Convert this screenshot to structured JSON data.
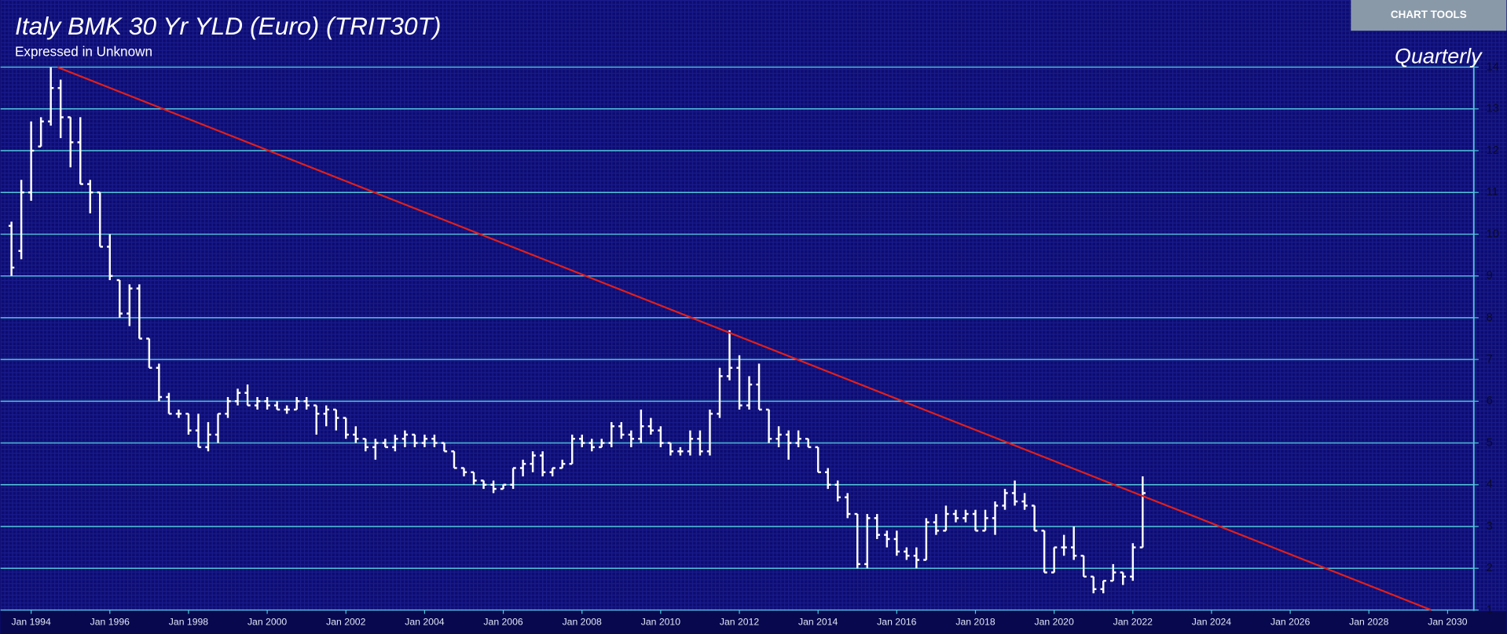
{
  "toolbar": {
    "button": "CHART TOOLS"
  },
  "chart_data": {
    "type": "ohlc",
    "title": "Italy BMK 30 Yr YLD (Euro) (TRIT30T)",
    "subtitle": "Expressed in Unknown",
    "period": "Quarterly",
    "bar_color": "#ffffff",
    "grid": true,
    "grid_color": "#52c6dc",
    "x": [
      "1993-07",
      "1993-10",
      "1994-01",
      "1994-04",
      "1994-07",
      "1994-10",
      "1995-01",
      "1995-04",
      "1995-07",
      "1995-10",
      "1996-01",
      "1996-04",
      "1996-07",
      "1996-10",
      "1997-01",
      "1997-04",
      "1997-07",
      "1997-10",
      "1998-01",
      "1998-04",
      "1998-07",
      "1998-10",
      "1999-01",
      "1999-04",
      "1999-07",
      "1999-10",
      "2000-01",
      "2000-04",
      "2000-07",
      "2000-10",
      "2001-01",
      "2001-04",
      "2001-07",
      "2001-10",
      "2002-01",
      "2002-04",
      "2002-07",
      "2002-10",
      "2003-01",
      "2003-04",
      "2003-07",
      "2003-10",
      "2004-01",
      "2004-04",
      "2004-07",
      "2004-10",
      "2005-01",
      "2005-04",
      "2005-07",
      "2005-10",
      "2006-01",
      "2006-04",
      "2006-07",
      "2006-10",
      "2007-01",
      "2007-04",
      "2007-07",
      "2007-10",
      "2008-01",
      "2008-04",
      "2008-07",
      "2008-10",
      "2009-01",
      "2009-04",
      "2009-07",
      "2009-10",
      "2010-01",
      "2010-04",
      "2010-07",
      "2010-10",
      "2011-01",
      "2011-04",
      "2011-07",
      "2011-10",
      "2012-01",
      "2012-04",
      "2012-07",
      "2012-10",
      "2013-01",
      "2013-04",
      "2013-07",
      "2013-10",
      "2014-01",
      "2014-04",
      "2014-07",
      "2014-10",
      "2015-01",
      "2015-04",
      "2015-07",
      "2015-10",
      "2016-01",
      "2016-04",
      "2016-07",
      "2016-10",
      "2017-01",
      "2017-04",
      "2017-07",
      "2017-10",
      "2018-01",
      "2018-04",
      "2018-07",
      "2018-10",
      "2019-01",
      "2019-04",
      "2019-07",
      "2019-10",
      "2020-01",
      "2020-04",
      "2020-07",
      "2020-10",
      "2021-01",
      "2021-04",
      "2021-07",
      "2021-10",
      "2022-01",
      "2022-04"
    ],
    "open": [
      10.2,
      9.6,
      11.0,
      12.1,
      12.7,
      13.5,
      12.8,
      12.2,
      11.2,
      11.0,
      9.7,
      8.9,
      8.1,
      8.7,
      7.5,
      6.8,
      6.1,
      5.7,
      5.7,
      5.3,
      4.9,
      5.2,
      5.7,
      6.0,
      6.2,
      5.9,
      6.0,
      5.9,
      5.8,
      5.8,
      6.0,
      5.9,
      5.7,
      5.8,
      5.6,
      5.2,
      5.1,
      4.9,
      5.0,
      4.9,
      5.1,
      5.2,
      5.0,
      5.1,
      5.0,
      4.8,
      4.4,
      4.3,
      4.1,
      4.0,
      3.9,
      4.0,
      4.4,
      4.5,
      4.7,
      4.3,
      4.4,
      4.5,
      5.1,
      5.0,
      4.9,
      5.0,
      5.4,
      5.2,
      5.1,
      5.4,
      5.3,
      5.0,
      4.8,
      4.8,
      5.1,
      4.8,
      5.7,
      6.6,
      6.8,
      5.9,
      6.4,
      5.8,
      5.1,
      5.2,
      5.0,
      5.1,
      4.9,
      4.3,
      4.0,
      3.7,
      3.3,
      2.1,
      3.2,
      2.8,
      2.7,
      2.4,
      2.3,
      2.2,
      3.1,
      2.9,
      3.3,
      3.2,
      3.3,
      2.9,
      3.2,
      3.5,
      3.8,
      3.6,
      3.5,
      2.9,
      1.9,
      2.5,
      2.5,
      2.3,
      1.8,
      1.5,
      1.7,
      1.9,
      1.8,
      2.5
    ],
    "high": [
      10.3,
      11.3,
      12.7,
      12.8,
      14.0,
      13.7,
      12.8,
      12.8,
      11.3,
      11.0,
      10.0,
      8.9,
      8.8,
      8.8,
      7.5,
      6.9,
      6.2,
      5.8,
      5.7,
      5.7,
      5.5,
      5.7,
      6.1,
      6.3,
      6.4,
      6.1,
      6.1,
      6.0,
      5.9,
      6.1,
      6.1,
      5.9,
      5.9,
      5.8,
      5.6,
      5.4,
      5.1,
      5.1,
      5.1,
      5.2,
      5.3,
      5.2,
      5.2,
      5.2,
      5.0,
      4.8,
      4.4,
      4.3,
      4.1,
      4.1,
      4.0,
      4.4,
      4.6,
      4.8,
      4.8,
      4.4,
      4.6,
      5.2,
      5.2,
      5.1,
      5.1,
      5.5,
      5.5,
      5.3,
      5.8,
      5.6,
      5.4,
      5.0,
      4.9,
      5.3,
      5.3,
      5.8,
      6.8,
      7.7,
      7.1,
      6.6,
      6.9,
      5.8,
      5.4,
      5.3,
      5.3,
      5.1,
      4.9,
      4.4,
      4.1,
      3.8,
      3.3,
      3.3,
      3.3,
      2.9,
      2.9,
      2.5,
      2.5,
      3.2,
      3.3,
      3.5,
      3.4,
      3.4,
      3.4,
      3.4,
      3.6,
      3.9,
      4.1,
      3.8,
      3.5,
      2.9,
      2.5,
      2.8,
      3.0,
      2.3,
      1.8,
      1.7,
      2.1,
      1.9,
      2.6,
      4.2
    ],
    "low": [
      9.0,
      9.4,
      10.8,
      12.1,
      12.6,
      12.3,
      11.6,
      11.2,
      10.5,
      9.7,
      8.9,
      8.0,
      7.8,
      7.5,
      6.8,
      6.0,
      5.7,
      5.6,
      5.2,
      4.9,
      4.8,
      5.0,
      5.6,
      5.9,
      5.9,
      5.8,
      5.8,
      5.8,
      5.7,
      5.8,
      5.8,
      5.2,
      5.4,
      5.3,
      5.1,
      5.0,
      4.8,
      4.6,
      4.9,
      4.8,
      4.9,
      4.9,
      4.9,
      4.9,
      4.8,
      4.4,
      4.2,
      4.0,
      3.9,
      3.8,
      3.9,
      3.9,
      4.2,
      4.3,
      4.2,
      4.2,
      4.4,
      4.5,
      4.9,
      4.8,
      4.9,
      4.9,
      5.1,
      4.9,
      5.0,
      5.2,
      4.9,
      4.7,
      4.7,
      4.7,
      4.7,
      4.7,
      5.6,
      6.5,
      5.8,
      5.8,
      5.8,
      5.0,
      4.9,
      4.6,
      4.9,
      4.9,
      4.3,
      3.9,
      3.6,
      3.2,
      2.0,
      2.0,
      2.7,
      2.5,
      2.3,
      2.2,
      2.0,
      2.2,
      2.8,
      2.9,
      3.1,
      3.1,
      2.9,
      2.9,
      2.8,
      3.4,
      3.5,
      3.4,
      2.9,
      1.9,
      1.9,
      2.3,
      2.2,
      1.8,
      1.4,
      1.4,
      1.7,
      1.6,
      1.7,
      2.5
    ],
    "close": [
      9.2,
      11.0,
      12.0,
      12.7,
      13.5,
      12.8,
      12.2,
      11.2,
      11.0,
      9.7,
      9.0,
      8.1,
      8.7,
      7.5,
      6.8,
      6.1,
      5.7,
      5.7,
      5.3,
      4.9,
      5.2,
      5.7,
      6.0,
      6.2,
      5.9,
      6.0,
      5.9,
      5.8,
      5.8,
      6.0,
      5.9,
      5.7,
      5.8,
      5.6,
      5.2,
      5.1,
      4.9,
      5.0,
      4.9,
      5.1,
      5.2,
      5.0,
      5.1,
      5.0,
      4.8,
      4.4,
      4.3,
      4.1,
      4.0,
      3.9,
      4.0,
      4.4,
      4.5,
      4.7,
      4.3,
      4.4,
      4.5,
      5.1,
      5.0,
      4.9,
      5.0,
      5.4,
      5.2,
      5.1,
      5.4,
      5.3,
      5.0,
      4.8,
      4.8,
      5.1,
      4.8,
      5.7,
      6.6,
      6.8,
      5.9,
      6.4,
      5.8,
      5.1,
      5.2,
      5.0,
      5.1,
      4.9,
      4.3,
      4.0,
      3.7,
      3.3,
      2.1,
      3.2,
      2.8,
      2.7,
      2.4,
      2.3,
      2.2,
      3.1,
      2.9,
      3.3,
      3.2,
      3.3,
      2.9,
      3.2,
      3.5,
      3.8,
      3.6,
      3.5,
      2.9,
      1.9,
      2.5,
      2.5,
      2.3,
      1.8,
      1.5,
      1.7,
      1.9,
      1.8,
      2.5,
      3.8
    ],
    "trendline": {
      "x": [
        "1994-09",
        "2029-08"
      ],
      "y": [
        14,
        1
      ],
      "color": "#e0201c"
    },
    "xlim": [
      "1993-06",
      "2030-09"
    ],
    "xticks": [
      {
        "value": "1994-01",
        "label": "Jan 1994"
      },
      {
        "value": "1996-01",
        "label": "Jan 1996"
      },
      {
        "value": "1998-01",
        "label": "Jan 1998"
      },
      {
        "value": "2000-01",
        "label": "Jan 2000"
      },
      {
        "value": "2002-01",
        "label": "Jan 2002"
      },
      {
        "value": "2004-01",
        "label": "Jan 2004"
      },
      {
        "value": "2006-01",
        "label": "Jan 2006"
      },
      {
        "value": "2008-01",
        "label": "Jan 2008"
      },
      {
        "value": "2010-01",
        "label": "Jan 2010"
      },
      {
        "value": "2012-01",
        "label": "Jan 2012"
      },
      {
        "value": "2014-01",
        "label": "Jan 2014"
      },
      {
        "value": "2016-01",
        "label": "Jan 2016"
      },
      {
        "value": "2018-01",
        "label": "Jan 2018"
      },
      {
        "value": "2020-01",
        "label": "Jan 2020"
      },
      {
        "value": "2022-01",
        "label": "Jan 2022"
      },
      {
        "value": "2024-01",
        "label": "Jan 2024"
      },
      {
        "value": "2026-01",
        "label": "Jan 2026"
      },
      {
        "value": "2028-01",
        "label": "Jan 2028"
      },
      {
        "value": "2030-01",
        "label": "Jan 2030"
      }
    ],
    "ylim": [
      1,
      14
    ],
    "yticks": [
      1,
      2,
      3,
      4,
      5,
      6,
      7,
      8,
      9,
      10,
      11,
      12,
      13,
      14
    ]
  }
}
